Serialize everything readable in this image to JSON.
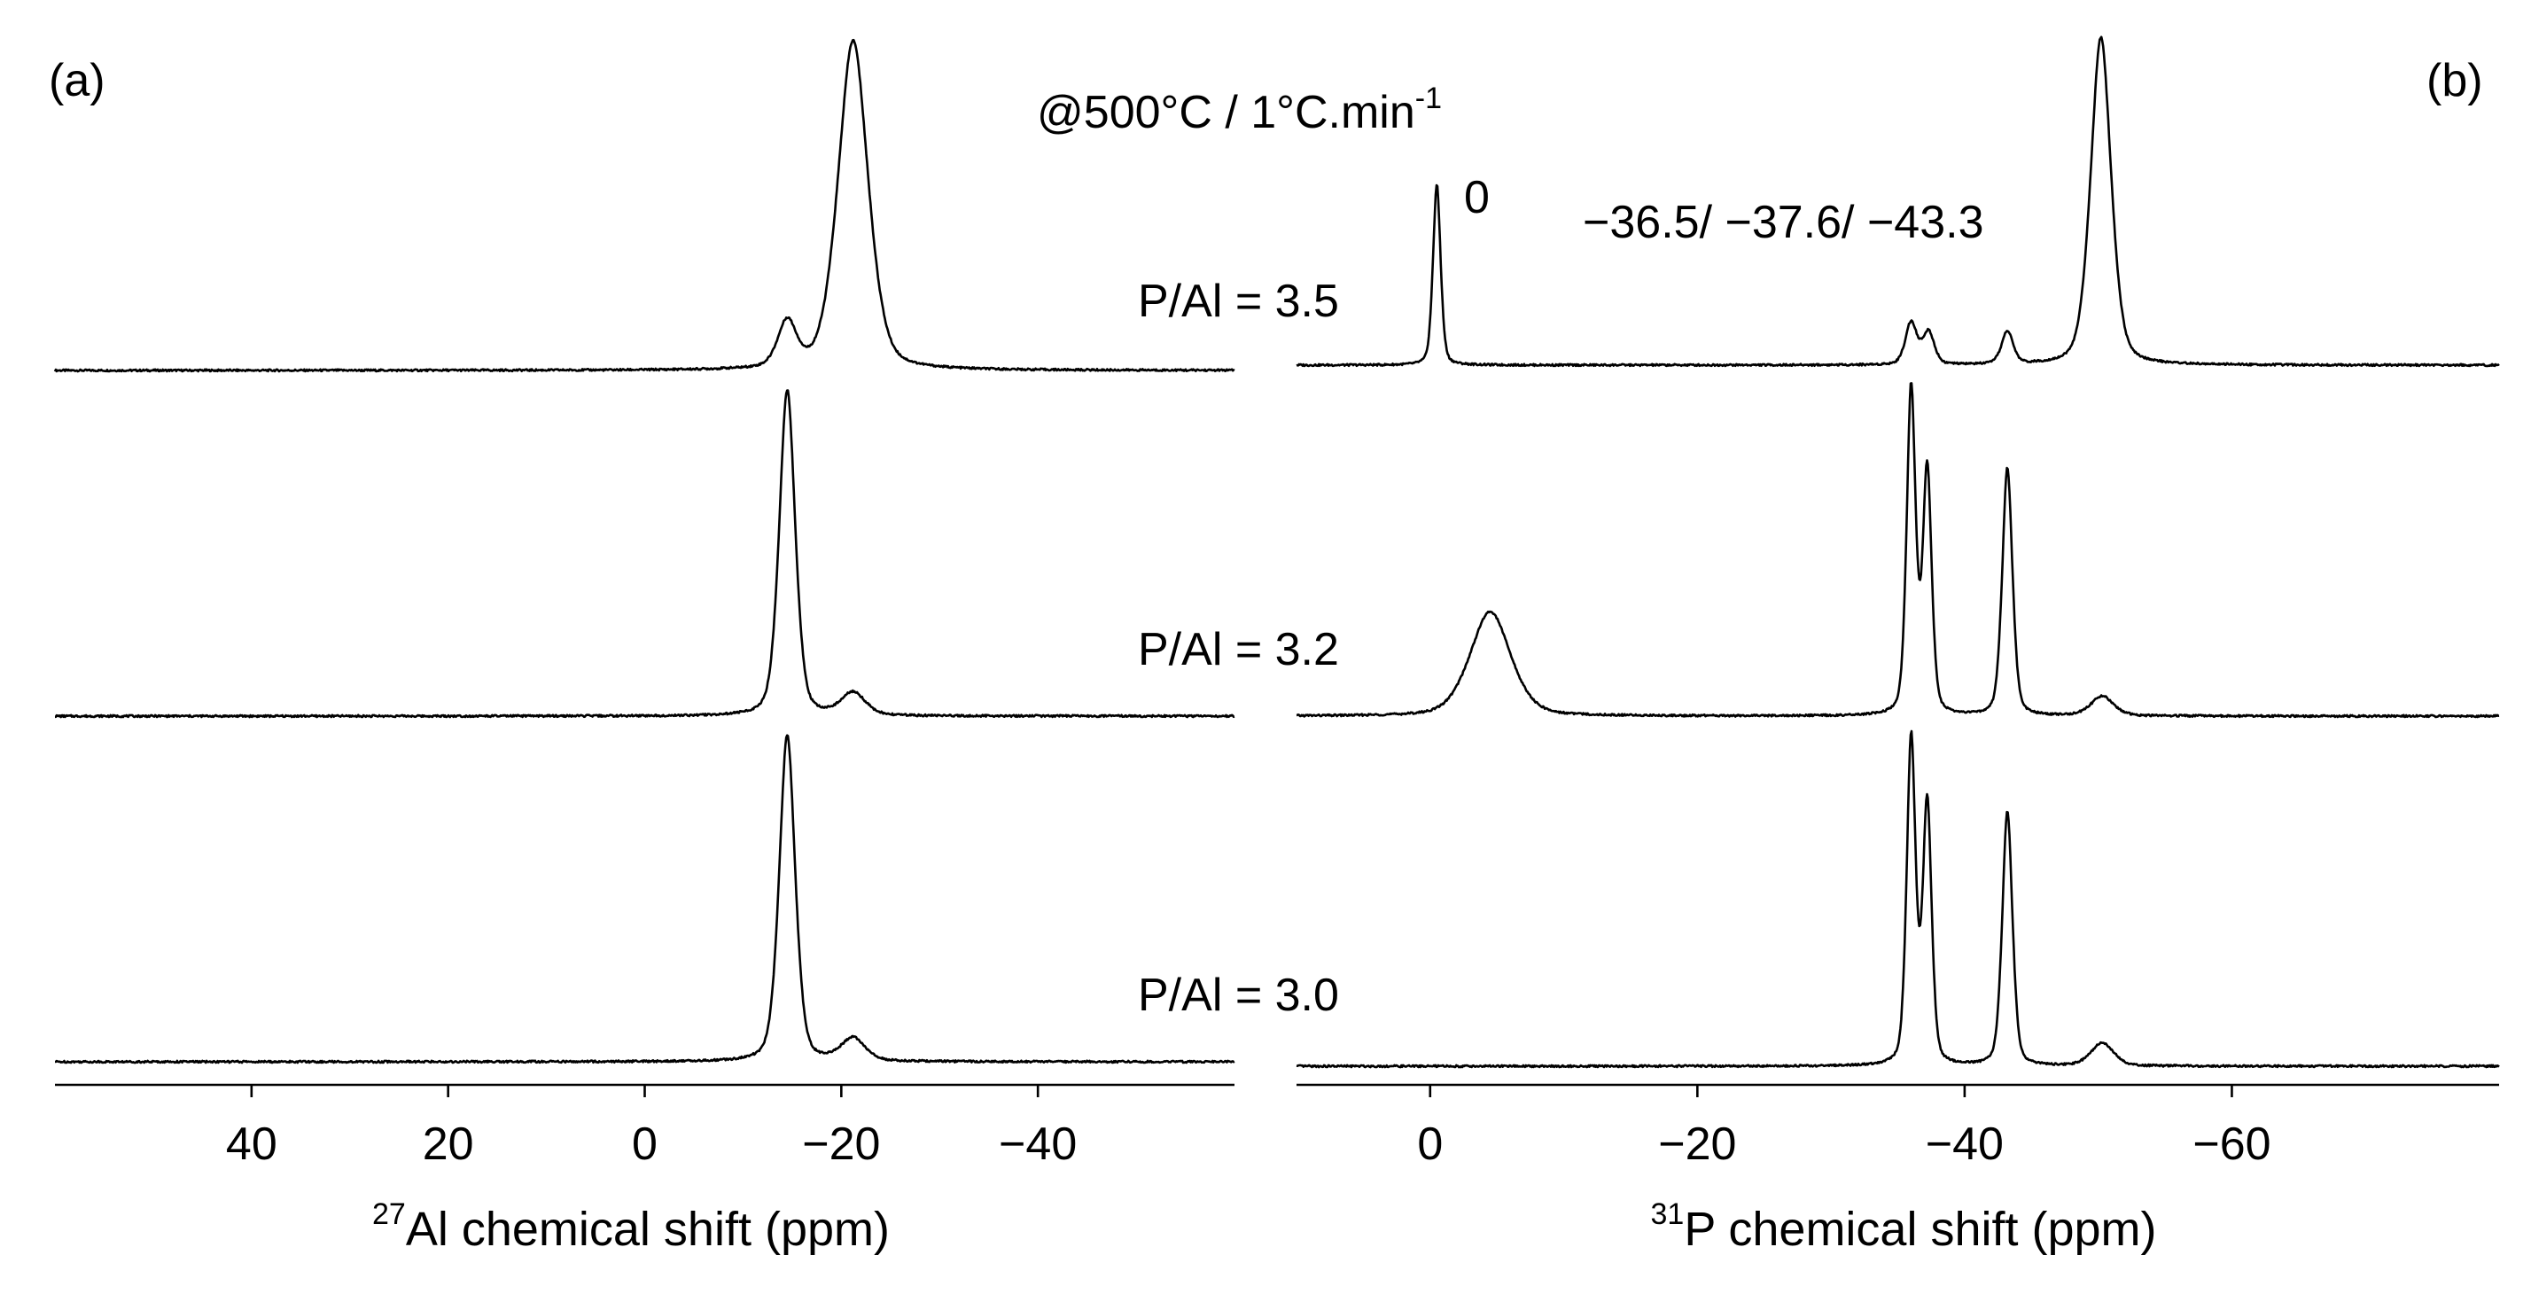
{
  "chart_data": [
    {
      "panel": "(a)",
      "type": "line",
      "title": "",
      "xlabel": {
        "superscript": "27",
        "text": "Al chemical shift (ppm)"
      },
      "ylabel": "",
      "xlim": [
        60,
        -60
      ],
      "x_reversed": true,
      "xticks": [
        40,
        20,
        0,
        -20,
        -40
      ],
      "xtick_labels": [
        "40",
        "20",
        "0",
        "−20",
        "−40"
      ],
      "grid": false,
      "series": [
        {
          "label": "P/Al = 3.5",
          "peaks": [
            {
              "x": -14.5,
              "height": 0.14,
              "width": 1.0
            },
            {
              "x": -21.2,
              "height": 1.0,
              "width": 1.6
            }
          ]
        },
        {
          "label": "P/Al = 3.2",
          "peaks": [
            {
              "x": -14.5,
              "height": 1.0,
              "width": 0.85
            },
            {
              "x": -21.2,
              "height": 0.07,
              "width": 1.3
            }
          ]
        },
        {
          "label": "P/Al = 3.0",
          "peaks": [
            {
              "x": -14.5,
              "height": 1.0,
              "width": 0.85
            },
            {
              "x": -21.2,
              "height": 0.07,
              "width": 1.3
            }
          ]
        }
      ]
    },
    {
      "panel": "(b)",
      "type": "line",
      "title": "",
      "annotation_condition": {
        "text": "@500°C / 1°C.min",
        "superscript": "-1"
      },
      "annotations": [
        "0",
        "−36.5/ −37.6/ −43.3"
      ],
      "xlabel": {
        "superscript": "31",
        "text": "P chemical shift (ppm)"
      },
      "ylabel": "",
      "xlim": [
        10,
        -80
      ],
      "x_reversed": true,
      "xticks": [
        0,
        -20,
        -40,
        -60
      ],
      "xtick_labels": [
        "0",
        "−20",
        "−40",
        "−60"
      ],
      "grid": false,
      "series": [
        {
          "label": "P/Al = 3.5",
          "peaks": [
            {
              "x": -0.5,
              "height": 0.55,
              "width": 0.3
            },
            {
              "x": -36.0,
              "height": 0.13,
              "width": 0.45
            },
            {
              "x": -37.3,
              "height": 0.1,
              "width": 0.45
            },
            {
              "x": -43.2,
              "height": 0.1,
              "width": 0.45
            },
            {
              "x": -50.2,
              "height": 1.0,
              "width": 0.8
            }
          ]
        },
        {
          "label": "P/Al = 3.2",
          "peaks": [
            {
              "x": -4.5,
              "height": 0.32,
              "width": 1.6
            },
            {
              "x": -36.0,
              "height": 1.0,
              "width": 0.35
            },
            {
              "x": -37.2,
              "height": 0.75,
              "width": 0.35
            },
            {
              "x": -43.2,
              "height": 0.76,
              "width": 0.4
            },
            {
              "x": -50.3,
              "height": 0.06,
              "width": 0.9
            }
          ]
        },
        {
          "label": "P/Al = 3.0",
          "peaks": [
            {
              "x": -36.0,
              "height": 1.0,
              "width": 0.35
            },
            {
              "x": -37.2,
              "height": 0.8,
              "width": 0.35
            },
            {
              "x": -43.2,
              "height": 0.78,
              "width": 0.4
            },
            {
              "x": -50.3,
              "height": 0.07,
              "width": 0.9
            }
          ]
        }
      ]
    }
  ]
}
